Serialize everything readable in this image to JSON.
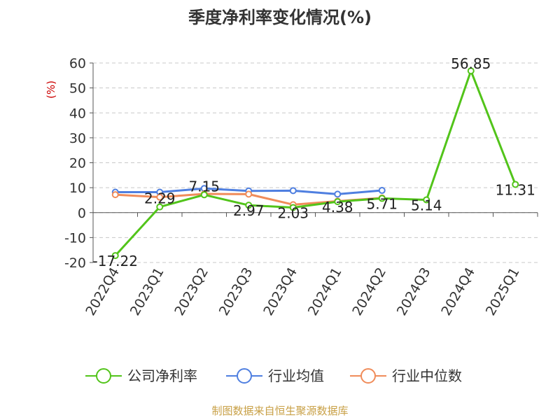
{
  "chart_data": {
    "type": "line",
    "title": "季度净利率变化情况(%)",
    "ylabel": "(%)",
    "xlabel": "",
    "ylim": [
      -20,
      60
    ],
    "yticks": [
      60,
      50,
      40,
      30,
      20,
      10,
      0,
      -10,
      -20
    ],
    "grid": true,
    "categories": [
      "2022Q4",
      "2023Q1",
      "2023Q2",
      "2023Q3",
      "2023Q4",
      "2024Q1",
      "2024Q2",
      "2024Q3",
      "2024Q4",
      "2025Q1"
    ],
    "series": [
      {
        "name": "公司净利率",
        "color": "#52c41a",
        "values": [
          -17.22,
          2.29,
          7.15,
          2.97,
          2.03,
          4.38,
          5.71,
          5.14,
          56.85,
          11.31
        ],
        "labels": [
          "-17.22",
          "2.29",
          "7.15",
          "2.97",
          "2.03",
          "4.38",
          "5.71",
          "5.14",
          "56.85",
          "11.31"
        ]
      },
      {
        "name": "行业均值",
        "color": "#4f7fe0",
        "values": [
          8.2,
          8.2,
          9.7,
          8.7,
          8.8,
          7.4,
          8.9,
          null,
          null,
          null
        ]
      },
      {
        "name": "行业中位数",
        "color": "#f08c5a",
        "values": [
          7.2,
          6.2,
          7.5,
          7.4,
          3.2,
          4.6,
          5.9,
          null,
          null,
          null
        ]
      }
    ],
    "legend_position": "bottom",
    "source": "制图数据来自恒生聚源数据库"
  }
}
